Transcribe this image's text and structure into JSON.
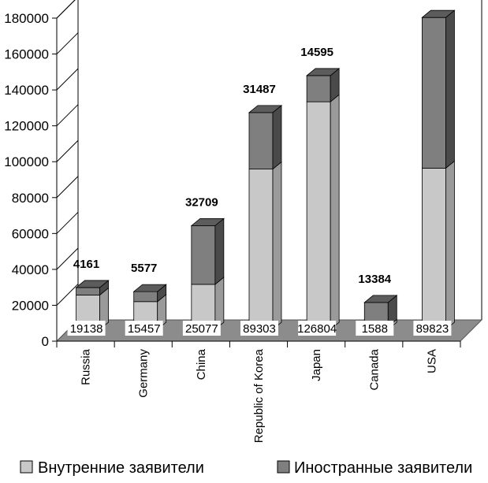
{
  "chart_data": {
    "type": "bar",
    "stacked": true,
    "three_d": true,
    "categories": [
      "Russia",
      "Germany",
      "China",
      "Republic of Korea",
      "Japan",
      "Canada",
      "USA"
    ],
    "series": [
      {
        "name": "Внутренние заявители",
        "values": [
          19138,
          15457,
          25077,
          89303,
          126804,
          1588,
          89823
        ]
      },
      {
        "name": "Иностранные заявители",
        "values": [
          4161,
          5577,
          32709,
          31487,
          14595,
          13384,
          83947
        ]
      }
    ],
    "ylim": [
      0,
      180000
    ],
    "yticks": [
      0,
      20000,
      40000,
      60000,
      80000,
      100000,
      120000,
      140000,
      160000,
      180000
    ],
    "grid": false,
    "legend_position": "bottom",
    "colors": {
      "domestic": "#c8c8c8",
      "foreign": "#7f7f7f",
      "floor": "#8c8c8c"
    }
  }
}
